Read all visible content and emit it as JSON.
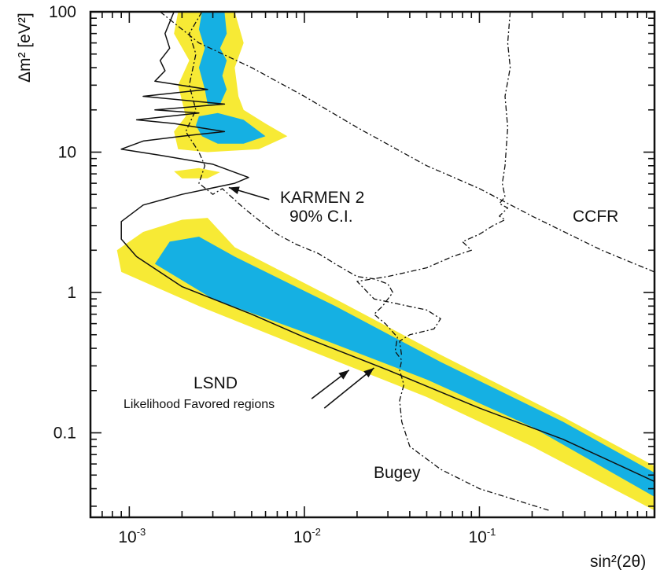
{
  "chart_data": {
    "type": "area",
    "xlabel": "sin²(2θ)",
    "ylabel": "Δm² [eV²]",
    "xscale": "log",
    "yscale": "log",
    "xlim": [
      0.0006,
      1.0
    ],
    "ylim": [
      0.025,
      100
    ],
    "x_ticks": [
      {
        "value": 0.001,
        "base": "10",
        "exp": "-3"
      },
      {
        "value": 0.01,
        "base": "10",
        "exp": "-2"
      },
      {
        "value": 0.1,
        "base": "10",
        "exp": "-1"
      }
    ],
    "y_ticks": [
      {
        "value": 0.1,
        "label": "0.1"
      },
      {
        "value": 1,
        "label": "1"
      },
      {
        "value": 10,
        "label": "10"
      },
      {
        "value": 100,
        "label": "100"
      }
    ],
    "grid": false,
    "colors": {
      "outer_region": "#f7ea35",
      "inner_region": "#15b0e3",
      "curve": "#111111"
    },
    "annotations": {
      "karmen_line1": "KARMEN 2",
      "karmen_line2": "90% C.I.",
      "ccfr": "CCFR",
      "lsnd": "LSND",
      "lsnd_sub": "Likelihood Favored regions",
      "bugey": "Bugey"
    },
    "regions": [
      {
        "level": "outer",
        "points": [
          [
            0.00085,
            2.0
          ],
          [
            0.0009,
            1.4
          ],
          [
            0.0025,
            0.8
          ],
          [
            0.01,
            0.4
          ],
          [
            0.05,
            0.18
          ],
          [
            0.2,
            0.08
          ],
          [
            1.0,
            0.028
          ],
          [
            1.0,
            0.058
          ],
          [
            0.3,
            0.13
          ],
          [
            0.06,
            0.36
          ],
          [
            0.015,
            0.9
          ],
          [
            0.004,
            2.1
          ],
          [
            0.0028,
            3.4
          ],
          [
            0.002,
            3.3
          ],
          [
            0.0012,
            2.7
          ]
        ]
      },
      {
        "level": "inner",
        "points": [
          [
            0.0014,
            1.6
          ],
          [
            0.003,
            0.9
          ],
          [
            0.01,
            0.52
          ],
          [
            0.05,
            0.24
          ],
          [
            0.2,
            0.11
          ],
          [
            1.0,
            0.035
          ],
          [
            1.0,
            0.052
          ],
          [
            0.3,
            0.12
          ],
          [
            0.06,
            0.32
          ],
          [
            0.015,
            0.8
          ],
          [
            0.004,
            1.8
          ],
          [
            0.0025,
            2.5
          ],
          [
            0.0017,
            2.3
          ]
        ]
      },
      {
        "level": "outer",
        "points": [
          [
            0.0019,
            100
          ],
          [
            0.004,
            100
          ],
          [
            0.0045,
            60
          ],
          [
            0.004,
            40
          ],
          [
            0.0042,
            25
          ],
          [
            0.0045,
            20
          ],
          [
            0.006,
            16
          ],
          [
            0.008,
            13
          ],
          [
            0.0055,
            10.5
          ],
          [
            0.0028,
            10
          ],
          [
            0.0019,
            10.5
          ],
          [
            0.0018,
            14
          ],
          [
            0.0021,
            18
          ],
          [
            0.0019,
            30
          ],
          [
            0.0022,
            45
          ],
          [
            0.0018,
            70
          ]
        ]
      },
      {
        "level": "inner",
        "points": [
          [
            0.0026,
            100
          ],
          [
            0.0035,
            100
          ],
          [
            0.0036,
            70
          ],
          [
            0.0033,
            55
          ],
          [
            0.0036,
            45
          ],
          [
            0.0034,
            35
          ],
          [
            0.0036,
            28
          ],
          [
            0.0033,
            22
          ],
          [
            0.0028,
            22
          ],
          [
            0.0027,
            28
          ],
          [
            0.0025,
            40
          ],
          [
            0.0027,
            55
          ],
          [
            0.0025,
            75
          ]
        ]
      },
      {
        "level": "inner",
        "points": [
          [
            0.0025,
            18
          ],
          [
            0.0032,
            19
          ],
          [
            0.0045,
            17
          ],
          [
            0.006,
            13
          ],
          [
            0.0045,
            11.5
          ],
          [
            0.0032,
            11.5
          ],
          [
            0.0026,
            13
          ],
          [
            0.0024,
            15.5
          ]
        ]
      },
      {
        "level": "outer",
        "points": [
          [
            0.0018,
            7.3
          ],
          [
            0.0025,
            7.7
          ],
          [
            0.0033,
            7.2
          ],
          [
            0.0028,
            6.5
          ],
          [
            0.002,
            6.5
          ]
        ]
      }
    ],
    "series": [
      {
        "name": "KARMEN 2",
        "style": "solid",
        "points": [
          [
            0.0018,
            100
          ],
          [
            0.0016,
            70
          ],
          [
            0.0017,
            55
          ],
          [
            0.0015,
            45
          ],
          [
            0.0016,
            38
          ],
          [
            0.0014,
            32
          ],
          [
            0.0028,
            28
          ],
          [
            0.0012,
            25
          ],
          [
            0.0035,
            22
          ],
          [
            0.0014,
            20
          ],
          [
            0.0025,
            19
          ],
          [
            0.0011,
            17
          ],
          [
            0.0018,
            16
          ],
          [
            0.0035,
            14
          ],
          [
            0.002,
            13
          ],
          [
            0.0012,
            12
          ],
          [
            0.0009,
            10.5
          ],
          [
            0.0015,
            9.5
          ],
          [
            0.003,
            8.2
          ],
          [
            0.0048,
            6.6
          ],
          [
            0.004,
            6.0
          ],
          [
            0.002,
            5.0
          ],
          [
            0.0012,
            4.2
          ],
          [
            0.0009,
            3.2
          ],
          [
            0.0009,
            2.4
          ],
          [
            0.0011,
            1.8
          ],
          [
            0.002,
            1.1
          ],
          [
            0.005,
            0.7
          ],
          [
            0.01,
            0.48
          ],
          [
            0.03,
            0.28
          ],
          [
            0.1,
            0.15
          ],
          [
            0.3,
            0.09
          ],
          [
            1.0,
            0.045
          ]
        ]
      },
      {
        "name": "CCFR",
        "style": "dashdot",
        "points": [
          [
            0.0015,
            100
          ],
          [
            0.0025,
            60
          ],
          [
            0.005,
            40
          ],
          [
            0.01,
            25
          ],
          [
            0.02,
            15
          ],
          [
            0.05,
            8
          ],
          [
            0.1,
            5.5
          ],
          [
            0.2,
            3.5
          ],
          [
            0.5,
            2.0
          ],
          [
            1.0,
            1.4
          ]
        ]
      },
      {
        "name": "Bugey",
        "style": "dashdot",
        "points": [
          [
            0.0026,
            100
          ],
          [
            0.0022,
            70
          ],
          [
            0.0024,
            50
          ],
          [
            0.0022,
            30
          ],
          [
            0.0024,
            20
          ],
          [
            0.0021,
            14
          ],
          [
            0.0025,
            10
          ],
          [
            0.0027,
            8
          ],
          [
            0.0025,
            6
          ],
          [
            0.003,
            5
          ],
          [
            0.0034,
            5.5
          ],
          [
            0.0045,
            4
          ],
          [
            0.006,
            3
          ],
          [
            0.007,
            2.6
          ],
          [
            0.009,
            2.2
          ],
          [
            0.012,
            1.9
          ],
          [
            0.015,
            1.6
          ],
          [
            0.018,
            1.4
          ],
          [
            0.02,
            1.3
          ],
          [
            0.025,
            1.25
          ],
          [
            0.03,
            1.15
          ],
          [
            0.032,
            1.0
          ],
          [
            0.028,
            0.8
          ],
          [
            0.025,
            0.7
          ],
          [
            0.029,
            0.6
          ],
          [
            0.034,
            0.48
          ],
          [
            0.033,
            0.38
          ],
          [
            0.036,
            0.33
          ],
          [
            0.035,
            0.28
          ],
          [
            0.037,
            0.22
          ],
          [
            0.035,
            0.17
          ],
          [
            0.036,
            0.12
          ],
          [
            0.04,
            0.08
          ],
          [
            0.06,
            0.055
          ],
          [
            0.1,
            0.04
          ],
          [
            0.25,
            0.028
          ]
        ]
      },
      {
        "name": "Bugey-upper",
        "style": "dashdot",
        "points": [
          [
            0.15,
            100
          ],
          [
            0.145,
            60
          ],
          [
            0.15,
            40
          ],
          [
            0.14,
            25
          ],
          [
            0.145,
            15
          ],
          [
            0.14,
            8
          ],
          [
            0.135,
            6
          ],
          [
            0.14,
            4.8
          ],
          [
            0.13,
            4.3
          ],
          [
            0.145,
            4.0
          ],
          [
            0.13,
            3.5
          ],
          [
            0.14,
            3.3
          ],
          [
            0.12,
            3.0
          ],
          [
            0.1,
            2.6
          ],
          [
            0.08,
            2.3
          ],
          [
            0.09,
            2.0
          ],
          [
            0.07,
            1.8
          ],
          [
            0.05,
            1.5
          ],
          [
            0.03,
            1.3
          ],
          [
            0.02,
            1.2
          ],
          [
            0.025,
            0.9
          ],
          [
            0.05,
            0.75
          ],
          [
            0.06,
            0.65
          ],
          [
            0.055,
            0.55
          ],
          [
            0.04,
            0.5
          ],
          [
            0.035,
            0.45
          ],
          [
            0.036,
            0.35
          ]
        ]
      }
    ],
    "arrows": [
      {
        "target": "karmen",
        "from": [
          0.0063,
          4.6
        ],
        "to": [
          0.0037,
          5.6
        ]
      },
      {
        "target": "lsnd-outer",
        "from": [
          0.011,
          0.175
        ],
        "to": [
          0.018,
          0.28
        ]
      },
      {
        "target": "lsnd-inner",
        "from": [
          0.013,
          0.15
        ],
        "to": [
          0.025,
          0.29
        ]
      }
    ]
  }
}
